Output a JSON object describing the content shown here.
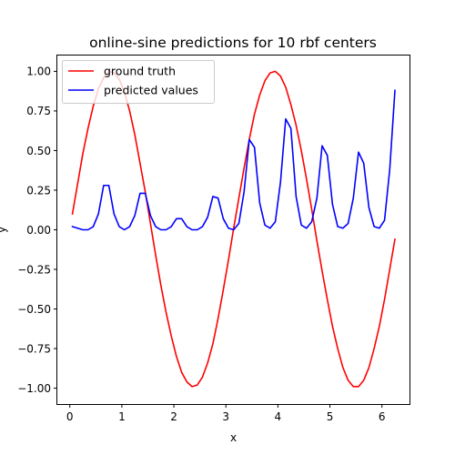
{
  "chart_data": {
    "type": "line",
    "title": "online-sine predictions for 10 rbf centers",
    "xlabel": "x",
    "ylabel": "y",
    "xlim": [
      -0.24,
      6.53
    ],
    "ylim": [
      -1.1,
      1.1
    ],
    "xticks": [
      0,
      1,
      2,
      3,
      4,
      5,
      6
    ],
    "yticks": [
      -1.0,
      -0.75,
      -0.5,
      -0.25,
      0.0,
      0.25,
      0.5,
      0.75,
      1.0
    ],
    "xtick_labels": [
      "0",
      "1",
      "2",
      "3",
      "4",
      "5",
      "6"
    ],
    "ytick_labels": [
      "−1.00",
      "−0.75",
      "−0.50",
      "−0.25",
      "0.00",
      "0.25",
      "0.50",
      "0.75",
      "1.00"
    ],
    "grid": false,
    "legend_position": "top-left",
    "series": [
      {
        "name": "ground truth",
        "color": "#ff0000",
        "x": [
          0.05,
          0.15,
          0.25,
          0.35,
          0.45,
          0.55,
          0.65,
          0.75,
          0.85,
          0.95,
          1.05,
          1.15,
          1.25,
          1.35,
          1.45,
          1.55,
          1.65,
          1.75,
          1.85,
          1.95,
          2.05,
          2.15,
          2.25,
          2.35,
          2.45,
          2.55,
          2.65,
          2.75,
          2.85,
          2.95,
          3.05,
          3.15,
          3.25,
          3.35,
          3.45,
          3.55,
          3.65,
          3.75,
          3.85,
          3.95,
          4.05,
          4.15,
          4.25,
          4.35,
          4.45,
          4.55,
          4.65,
          4.75,
          4.85,
          4.95,
          5.05,
          5.15,
          5.25,
          5.35,
          5.45,
          5.55,
          5.65,
          5.75,
          5.85,
          5.95,
          6.05,
          6.15,
          6.25
        ],
        "values": [
          0.1,
          0.29,
          0.48,
          0.64,
          0.78,
          0.89,
          0.96,
          1.0,
          0.99,
          0.95,
          0.87,
          0.75,
          0.6,
          0.42,
          0.24,
          0.04,
          -0.16,
          -0.35,
          -0.52,
          -0.67,
          -0.8,
          -0.9,
          -0.96,
          -0.99,
          -0.98,
          -0.93,
          -0.84,
          -0.72,
          -0.56,
          -0.38,
          -0.19,
          0.01,
          0.2,
          0.39,
          0.57,
          0.73,
          0.85,
          0.94,
          0.99,
          1.0,
          0.97,
          0.9,
          0.79,
          0.66,
          0.5,
          0.32,
          0.13,
          -0.07,
          -0.26,
          -0.44,
          -0.61,
          -0.75,
          -0.87,
          -0.95,
          -0.99,
          -0.99,
          -0.95,
          -0.87,
          -0.75,
          -0.61,
          -0.44,
          -0.25,
          -0.06
        ]
      },
      {
        "name": "predicted values",
        "color": "#0000ff",
        "x": [
          0.05,
          0.15,
          0.25,
          0.35,
          0.45,
          0.55,
          0.65,
          0.75,
          0.85,
          0.95,
          1.05,
          1.15,
          1.25,
          1.35,
          1.45,
          1.55,
          1.65,
          1.75,
          1.85,
          1.95,
          2.05,
          2.15,
          2.25,
          2.35,
          2.45,
          2.55,
          2.65,
          2.75,
          2.85,
          2.95,
          3.05,
          3.15,
          3.25,
          3.35,
          3.45,
          3.55,
          3.65,
          3.75,
          3.85,
          3.95,
          4.05,
          4.15,
          4.25,
          4.35,
          4.45,
          4.55,
          4.65,
          4.75,
          4.85,
          4.95,
          5.05,
          5.15,
          5.25,
          5.35,
          5.45,
          5.55,
          5.65,
          5.75,
          5.85,
          5.95,
          6.05,
          6.15,
          6.25
        ],
        "values": [
          0.02,
          0.01,
          0.0,
          0.0,
          0.02,
          0.1,
          0.28,
          0.28,
          0.1,
          0.02,
          0.0,
          0.02,
          0.09,
          0.23,
          0.23,
          0.09,
          0.02,
          0.0,
          0.0,
          0.02,
          0.07,
          0.07,
          0.02,
          0.0,
          0.0,
          0.02,
          0.08,
          0.21,
          0.2,
          0.07,
          0.01,
          0.0,
          0.04,
          0.24,
          0.57,
          0.52,
          0.17,
          0.03,
          0.01,
          0.05,
          0.3,
          0.7,
          0.64,
          0.21,
          0.03,
          0.01,
          0.05,
          0.2,
          0.53,
          0.47,
          0.16,
          0.02,
          0.01,
          0.04,
          0.2,
          0.49,
          0.42,
          0.14,
          0.02,
          0.01,
          0.06,
          0.38,
          0.88
        ]
      }
    ]
  }
}
